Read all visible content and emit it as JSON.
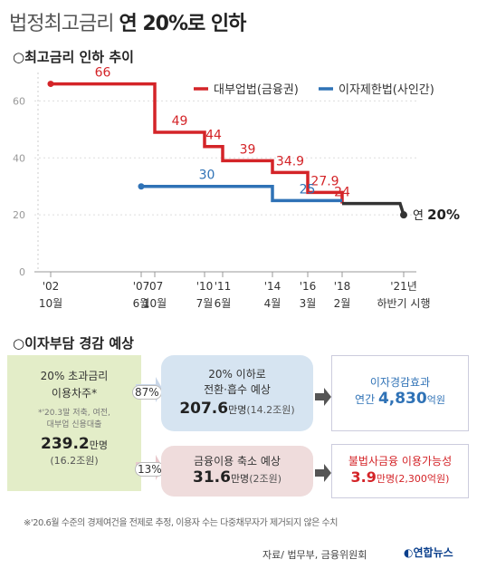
{
  "title": {
    "prefix": "법정최고금리",
    "highlight": "연 20%로 인하"
  },
  "section1": "○최고금리 인하 추이",
  "section2": "○이자부담 경감 예상",
  "chart_data": {
    "type": "line",
    "step": true,
    "ylim": [
      0,
      70
    ],
    "yticks": [
      0,
      20,
      40,
      60
    ],
    "x_tick_labels": [
      {
        "x": 2002.0,
        "top": "'02",
        "bottom": "10월"
      },
      {
        "x": 2007.0,
        "top": "'07",
        "bottom": "6월"
      },
      {
        "x": 2007.75,
        "top": "'07",
        "bottom": "10월"
      },
      {
        "x": 2010.5,
        "top": "'10",
        "bottom": "7월"
      },
      {
        "x": 2011.5,
        "top": "'11",
        "bottom": "6월"
      },
      {
        "x": 2014.25,
        "top": "'14",
        "bottom": "4월"
      },
      {
        "x": 2016.2,
        "top": "'16",
        "bottom": "3월"
      },
      {
        "x": 2018.1,
        "top": "'18",
        "bottom": "2월"
      },
      {
        "x": 2021.5,
        "top": "'21년",
        "bottom": "하반기 시행"
      }
    ],
    "series": [
      {
        "name": "대부업법(금융권)",
        "color": "#d42428",
        "points": [
          {
            "x": 2002.0,
            "y": 66,
            "label": "66"
          },
          {
            "x": 2007.75,
            "y": 49,
            "label": "49"
          },
          {
            "x": 2010.5,
            "y": 44,
            "label": "44"
          },
          {
            "x": 2011.5,
            "y": 39,
            "label": "39"
          },
          {
            "x": 2014.25,
            "y": 34.9,
            "label": "34.9"
          },
          {
            "x": 2016.2,
            "y": 27.9,
            "label": "27.9"
          },
          {
            "x": 2018.1,
            "y": 24,
            "label": "24"
          }
        ],
        "end_x": 2018.1
      },
      {
        "name": "이자제한법(사인간)",
        "color": "#2f72b6",
        "points": [
          {
            "x": 2007.0,
            "y": 30,
            "label": "30"
          },
          {
            "x": 2014.25,
            "y": 25,
            "label": "25"
          }
        ],
        "end_x": 2018.1
      },
      {
        "name": "",
        "color": "#333333",
        "points": [
          {
            "x": 2018.1,
            "y": 24
          },
          {
            "x": 2021.5,
            "y": 20
          }
        ],
        "end_x": 2021.5
      }
    ],
    "end_annotation": {
      "prefix": "연 ",
      "value": "20%"
    }
  },
  "flow": {
    "source": {
      "line1": "20% 초과금리",
      "line2": "이용차주*",
      "note1": "*'20.3말 저축, 여전,",
      "note2": "대부업 신용대출",
      "count": "239.2",
      "unit": "만명",
      "sub": "(16.2조원)"
    },
    "pct_top": "87%",
    "pct_bottom": "13%",
    "mid_top": {
      "line1": "20% 이하로",
      "line2": "전환·흡수 예상",
      "count": "207.6",
      "unit": "만명",
      "sub": "(14.2조원)"
    },
    "mid_bottom": {
      "line1": "금융이용 축소 예상",
      "count": "31.6",
      "unit": "만명",
      "sub": "(2조원)"
    },
    "right_top": {
      "line1": "이자경감효과",
      "prefix": "연간 ",
      "value": "4,830",
      "unit": "억원"
    },
    "right_bottom": {
      "line1": "불법사금융 이용가능성",
      "value": "3.9",
      "unit": "만명",
      "sub": "(2,300억원)"
    }
  },
  "footnote": "※'20.6월 수준의 경제여건을 전제로 추정, 이용자 수는 다중채무자가 제거되지 않은 수치",
  "source_text": "자료/ 법무부, 금융위원회",
  "logo_text": "연합뉴스",
  "colors": {
    "red": "#d42428",
    "blue": "#2f72b6",
    "green_box": "#e3edc8",
    "blue_box": "#d6e4f1",
    "pink_box": "#efdcdc",
    "arrow": "#555555"
  }
}
